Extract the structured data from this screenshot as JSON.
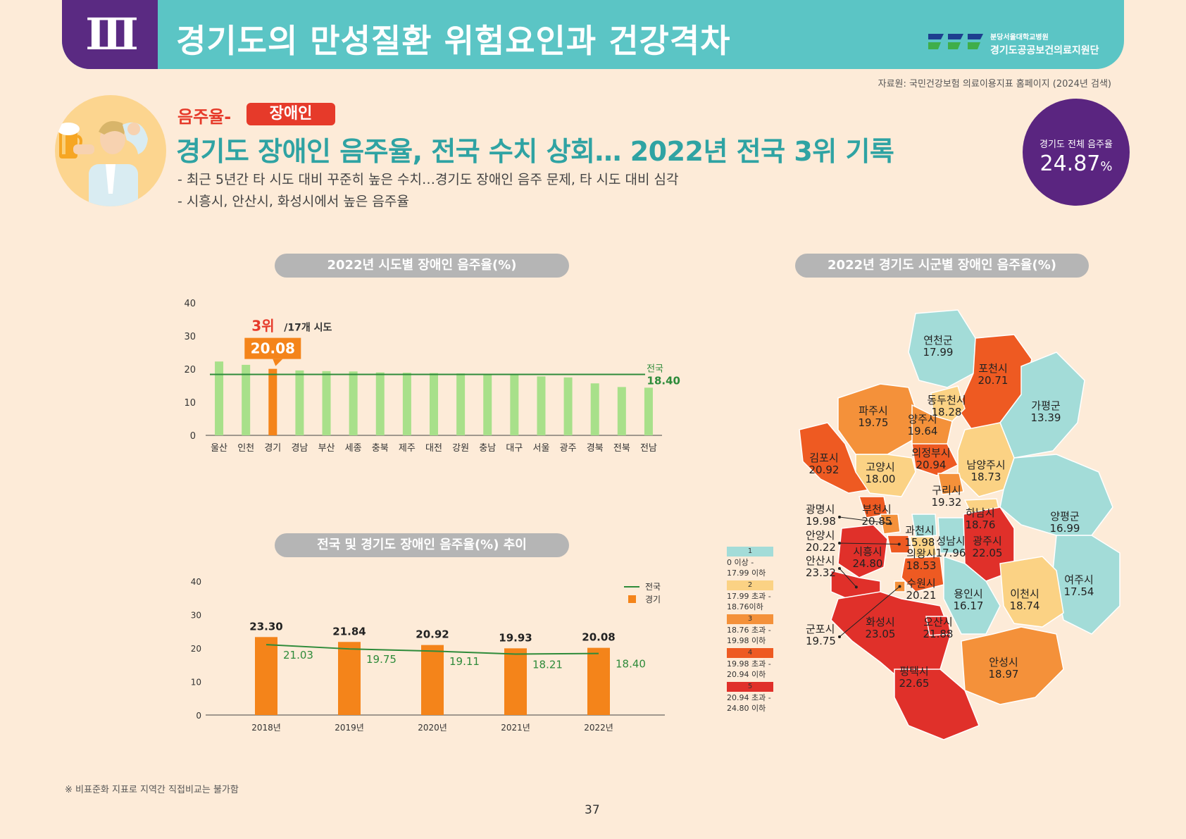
{
  "header": {
    "roman": "Ⅲ",
    "title": "경기도의 만성질환 위험요인과 건강격차",
    "logo_line1": "분당서울대학교병원",
    "logo_line2": "경기도공공보건의료지원단"
  },
  "source": "자료원: 국민건강보험 의료이용지표 홈페이지 (2024년 검색)",
  "section": {
    "tag": "음주율-",
    "tag_pill": "장애인",
    "headline": "경기도 장애인 음주율, 전국 수치 상회… 2022년 전국 3위 기록",
    "sub1": "- 최근 5년간 타 시도 대비 꾸준히 높은 수치…경기도 장애인 음주 문제, 타 시도 대비 심각",
    "sub2": "- 시흥시, 안산시, 화성시에서 높은 음주율"
  },
  "badge": {
    "label": "경기도 전체 음주율",
    "value": "24.87",
    "unit": "%"
  },
  "colors": {
    "teal": "#5bc5c5",
    "purple": "#5a2a82",
    "bar_green": "#a8e08a",
    "bar_orange": "#f4841a",
    "line_green": "#2e8b3a",
    "red": "#e63a2a"
  },
  "chart_data": [
    {
      "type": "bar",
      "title": "2022년 시도별 장애인 음주율(%)",
      "categories": [
        "울산",
        "인천",
        "경기",
        "경남",
        "부산",
        "세종",
        "충북",
        "제주",
        "대전",
        "강원",
        "충남",
        "대구",
        "서울",
        "광주",
        "경북",
        "전북",
        "전남"
      ],
      "values": [
        22.3,
        21.3,
        20.08,
        19.6,
        19.4,
        19.3,
        19.0,
        18.9,
        18.8,
        18.7,
        18.3,
        18.2,
        17.8,
        17.5,
        15.7,
        14.6,
        14.4
      ],
      "highlight": "경기",
      "highlight_rank": "3위",
      "highlight_rank_suffix": "/17개 시도",
      "highlight_label": "20.08",
      "reference_line": {
        "name": "전국",
        "value": 18.4,
        "label": "18.40"
      },
      "yticks": [
        "0",
        "10",
        "20",
        "30",
        "40"
      ],
      "ylim": [
        0,
        40
      ]
    },
    {
      "type": "bar+line",
      "title": "전국 및 경기도 장애인 음주율(%) 추이",
      "categories": [
        "2018년",
        "2019년",
        "2020년",
        "2021년",
        "2022년"
      ],
      "series": [
        {
          "name": "경기",
          "type": "bar",
          "values": [
            23.3,
            21.84,
            20.92,
            19.93,
            20.08
          ],
          "labels": [
            "23.30",
            "21.84",
            "20.92",
            "19.93",
            "20.08"
          ]
        },
        {
          "name": "전국",
          "type": "line",
          "values": [
            21.03,
            19.75,
            19.11,
            18.21,
            18.4
          ],
          "labels": [
            "21.03",
            "19.75",
            "19.11",
            "18.21",
            "18.40"
          ]
        }
      ],
      "yticks": [
        "0",
        "10",
        "20",
        "30",
        "40"
      ],
      "ylim": [
        0,
        40
      ],
      "legend": "top-right"
    },
    {
      "type": "choropleth",
      "title": "2022년 경기도 시군별 장애인 음주율(%)",
      "regions": [
        {
          "name": "연천군",
          "value": "17.99",
          "cls": 1
        },
        {
          "name": "포천시",
          "value": "20.71",
          "cls": 4
        },
        {
          "name": "동두천시",
          "value": "18.28",
          "cls": 2
        },
        {
          "name": "파주시",
          "value": "19.75",
          "cls": 3
        },
        {
          "name": "양주시",
          "value": "19.64",
          "cls": 3
        },
        {
          "name": "가평군",
          "value": "13.39",
          "cls": 1
        },
        {
          "name": "의정부시",
          "value": "20.94",
          "cls": 4
        },
        {
          "name": "김포시",
          "value": "20.92",
          "cls": 4
        },
        {
          "name": "고양시",
          "value": "18.00",
          "cls": 2
        },
        {
          "name": "남양주시",
          "value": "18.73",
          "cls": 2
        },
        {
          "name": "구리시",
          "value": "19.32",
          "cls": 3
        },
        {
          "name": "부천시",
          "value": "20.85",
          "cls": 4
        },
        {
          "name": "하남시",
          "value": "18.76",
          "cls": 2
        },
        {
          "name": "양평군",
          "value": "16.99",
          "cls": 1
        },
        {
          "name": "광명시",
          "value": "19.98",
          "cls": 3
        },
        {
          "name": "과천시",
          "value": "15.98",
          "cls": 1
        },
        {
          "name": "안양시",
          "value": "20.22",
          "cls": 4
        },
        {
          "name": "성남시",
          "value": "17.96",
          "cls": 1
        },
        {
          "name": "광주시",
          "value": "22.05",
          "cls": 5
        },
        {
          "name": "시흥시",
          "value": "24.80",
          "cls": 5
        },
        {
          "name": "의왕시",
          "value": "18.53",
          "cls": 2
        },
        {
          "name": "안산시",
          "value": "23.32",
          "cls": 5
        },
        {
          "name": "여주시",
          "value": "17.54",
          "cls": 1
        },
        {
          "name": "수원시",
          "value": "20.21",
          "cls": 4
        },
        {
          "name": "용인시",
          "value": "16.17",
          "cls": 1
        },
        {
          "name": "이천시",
          "value": "18.74",
          "cls": 2
        },
        {
          "name": "군포시",
          "value": "19.75",
          "cls": 3
        },
        {
          "name": "화성시",
          "value": "23.05",
          "cls": 5
        },
        {
          "name": "오산시",
          "value": "21.88",
          "cls": 5
        },
        {
          "name": "안성시",
          "value": "18.97",
          "cls": 3
        },
        {
          "name": "평택시",
          "value": "22.65",
          "cls": 5
        }
      ],
      "legend_classes": [
        {
          "num": "1",
          "label": "0 이상 - 17.99 이하",
          "color": "#a3dcd8"
        },
        {
          "num": "2",
          "label": "17.99 초과 - 18.76이하",
          "color": "#fbd284"
        },
        {
          "num": "3",
          "label": "18.76 초과 - 19.98 이하",
          "color": "#f4913a"
        },
        {
          "num": "4",
          "label": "19.98 초과 - 20.94 이하",
          "color": "#ee5a22"
        },
        {
          "num": "5",
          "label": "20.94 초과 - 24.80 이하",
          "color": "#e0302a"
        }
      ]
    }
  ],
  "footnote": "※ 비표준화 지표로 지역간 직접비교는 불가함",
  "page_number": "37"
}
